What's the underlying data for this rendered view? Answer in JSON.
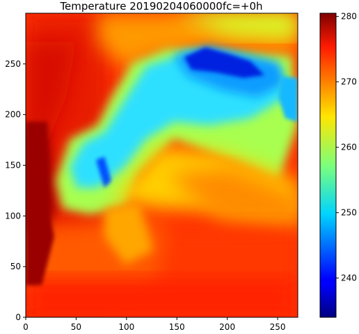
{
  "chart_data": {
    "type": "heatmap",
    "title": "Temperature 20190204060000fc=+0h",
    "xlabel": "",
    "ylabel": "",
    "xlim": [
      0,
      270
    ],
    "ylim": [
      0,
      300
    ],
    "x_ticks": [
      0,
      50,
      100,
      150,
      200,
      250
    ],
    "y_ticks": [
      0,
      50,
      100,
      150,
      200,
      250
    ],
    "colorbar": {
      "colormap": "jet",
      "range": [
        234,
        280.5
      ],
      "ticks": [
        240,
        250,
        260,
        270,
        280
      ]
    },
    "field_description_values": {
      "cold_core_min": 234,
      "ocean_west_max": 280,
      "land_mass_mean": 256,
      "sea_south_east_mean": 272
    }
  },
  "colors": {
    "axis": "#000000",
    "background": "#ffffff"
  }
}
